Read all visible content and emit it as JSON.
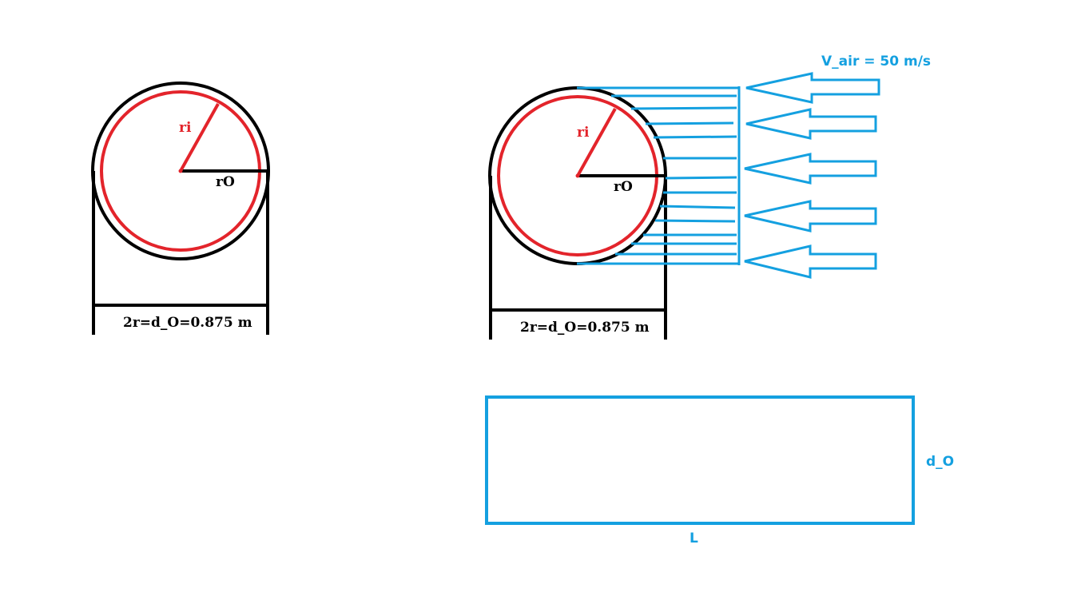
{
  "colors": {
    "black": "#000000",
    "red": "#e3242b",
    "blue": "#14a0e0"
  },
  "left_figure": {
    "ri_label": "ri",
    "ro_label": "rO",
    "diameter_label": "2r=d_O=0.875 m"
  },
  "right_figure": {
    "ri_label": "ri",
    "ro_label": "rO",
    "diameter_label": "2r=d_O=0.875 m",
    "airflow_label": "V_air = 50 m/s"
  },
  "rectangle": {
    "height_label": "d_O",
    "length_label": "L"
  }
}
